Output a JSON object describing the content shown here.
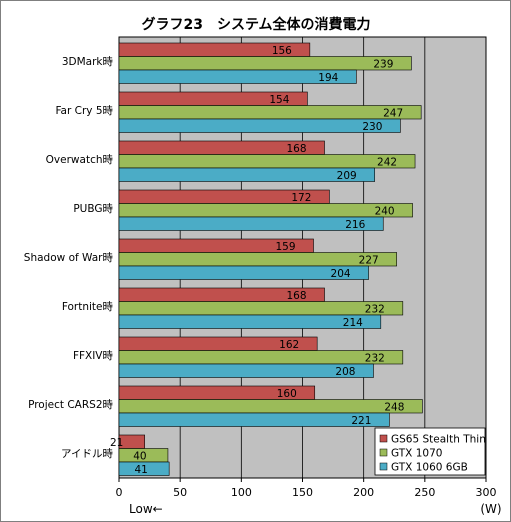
{
  "chart_data": {
    "type": "bar",
    "orientation": "horizontal",
    "title": "グラフ23　システム全体の消費電力",
    "categories": [
      "3DMark時",
      "Far Cry 5時",
      "Overwatch時",
      "PUBG時",
      "Shadow of War時",
      "Fortnite時",
      "FFXIV時",
      "Project CARS2時",
      "アイドル時"
    ],
    "series": [
      {
        "name": "GS65 Stealth Thin",
        "color": "#c0504d",
        "values": [
          156,
          154,
          168,
          172,
          159,
          168,
          162,
          160,
          21
        ]
      },
      {
        "name": "GTX 1070",
        "color": "#9bbb59",
        "values": [
          239,
          247,
          242,
          240,
          227,
          232,
          232,
          248,
          40
        ]
      },
      {
        "name": "GTX 1060 6GB",
        "color": "#4bacc6",
        "values": [
          194,
          230,
          209,
          216,
          204,
          214,
          208,
          221,
          41
        ]
      }
    ],
    "xlim": [
      0,
      300
    ],
    "xticks": [
      0,
      50,
      100,
      150,
      200,
      250,
      300
    ],
    "unit_label": "(W)",
    "direction_label": "Low←",
    "legend_position": "bottom-right",
    "grid": true,
    "plot_background": "#c0c0c0"
  }
}
